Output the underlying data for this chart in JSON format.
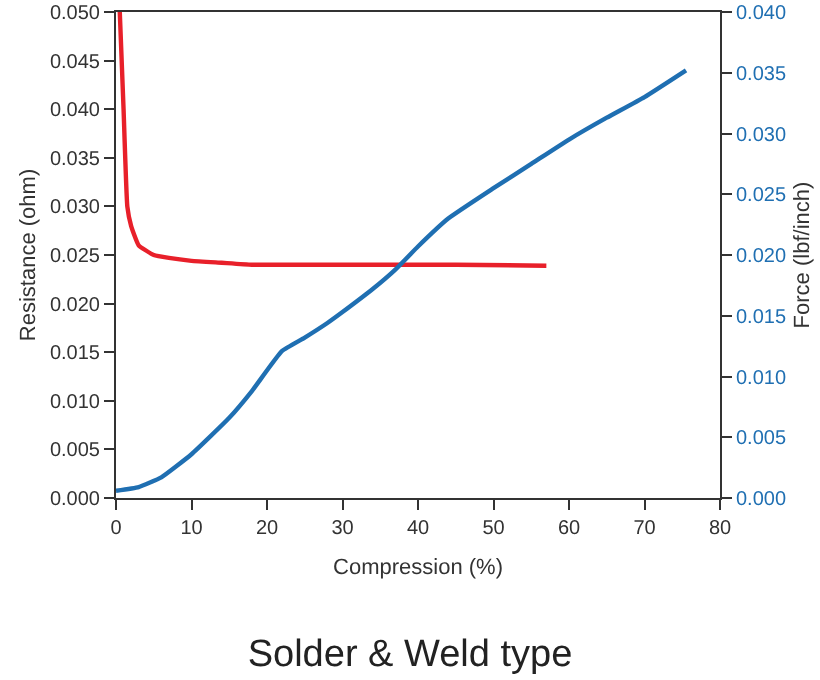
{
  "chart_data": {
    "type": "line",
    "title": "Solder & Weld type",
    "xlabel": "Compression (%)",
    "ylabel": "Resistance (ohm)",
    "y2label": "Force (lbf/inch)",
    "series": [
      {
        "name": null,
        "color": "#e8202a",
        "x": [
          0.5,
          1,
          1.5,
          2,
          3,
          5,
          7,
          10,
          14,
          18,
          30,
          45,
          57
        ],
        "values": [
          0.05,
          0.04,
          0.03,
          0.028,
          0.026,
          0.025,
          0.0247,
          0.0244,
          0.0242,
          0.024,
          0.024,
          0.024,
          0.0239
        ]
      },
      {
        "name": null,
        "color": "#1f6fb2",
        "axis": "y2",
        "x": [
          0,
          3,
          6,
          10,
          15,
          18,
          22,
          25,
          28,
          30,
          34,
          37,
          40,
          44,
          50,
          55,
          60,
          65,
          70,
          75.5
        ],
        "values": [
          0.0006,
          0.0009,
          0.0017,
          0.0036,
          0.0066,
          0.0088,
          0.0121,
          0.0132,
          0.0144,
          0.0153,
          0.0172,
          0.0188,
          0.0207,
          0.023,
          0.0255,
          0.0275,
          0.0295,
          0.0313,
          0.033,
          0.0352
        ]
      }
    ],
    "xlim": [
      0,
      80
    ],
    "xticks": [
      0,
      10,
      20,
      30,
      40,
      50,
      60,
      70,
      80
    ],
    "ylim": [
      0,
      0.05
    ],
    "yticks": [
      {
        "value": 0,
        "label": "0.000"
      },
      {
        "value": 0.005,
        "label": "0.005"
      },
      {
        "value": 0.01,
        "label": "0.010"
      },
      {
        "value": 0.015,
        "label": "0.015"
      },
      {
        "value": 0.02,
        "label": "0.020"
      },
      {
        "value": 0.025,
        "label": "0.025"
      },
      {
        "value": 0.03,
        "label": "0.030"
      },
      {
        "value": 0.035,
        "label": "0.035"
      },
      {
        "value": 0.04,
        "label": "0.040"
      },
      {
        "value": 0.045,
        "label": "0.045"
      },
      {
        "value": 0.05,
        "label": "0.050"
      }
    ],
    "y2lim": [
      0,
      0.04
    ],
    "y2ticks": [
      {
        "value": 0,
        "label": "0.000"
      },
      {
        "value": 0.005,
        "label": "0.005"
      },
      {
        "value": 0.01,
        "label": "0.010"
      },
      {
        "value": 0.015,
        "label": "0.015"
      },
      {
        "value": 0.02,
        "label": "0.020"
      },
      {
        "value": 0.025,
        "label": "0.025"
      },
      {
        "value": 0.03,
        "label": "0.030"
      },
      {
        "value": 0.035,
        "label": "0.035"
      },
      {
        "value": 0.04,
        "label": "0.040"
      }
    ],
    "grid": false,
    "marker": "none",
    "line_style": "solid"
  }
}
